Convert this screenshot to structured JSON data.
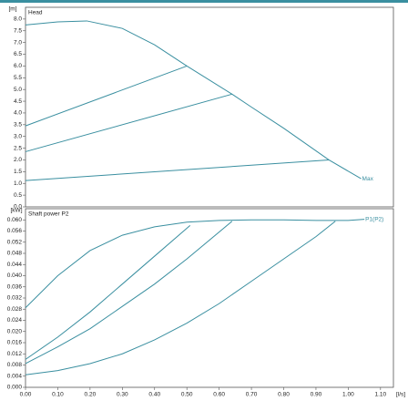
{
  "chart_data": [
    {
      "type": "line",
      "title": "Head",
      "y_label": "[m]",
      "xlim": [
        0,
        1.14
      ],
      "ylim": [
        0,
        8.5
      ],
      "yticks": [
        {
          "value": 0,
          "label": "0.0"
        },
        0.5,
        {
          "value": 1,
          "label": "1.0"
        },
        1.5,
        {
          "value": 2,
          "label": "2.0"
        },
        2.5,
        {
          "value": 3,
          "label": "3.0"
        },
        3.5,
        {
          "value": 4,
          "label": "4.0"
        },
        4.5,
        {
          "value": 5,
          "label": "5.0"
        },
        5.5,
        {
          "value": 6,
          "label": "6.0"
        },
        6.5,
        {
          "value": 7,
          "label": "7.0"
        },
        7.5,
        {
          "value": 8,
          "label": "8.0"
        }
      ],
      "series": [
        {
          "name": "Max",
          "color": "#3a8fa0",
          "x": [
            0,
            0.1,
            0.19,
            0.3,
            0.4,
            0.5,
            0.64,
            0.7,
            0.8,
            0.94,
            1.04
          ],
          "values": [
            7.75,
            7.88,
            7.92,
            7.6,
            6.9,
            6.0,
            4.8,
            4.25,
            3.35,
            2.0,
            1.2
          ]
        },
        {
          "color": "#3a8fa0",
          "x": [
            0,
            0.5
          ],
          "values": [
            3.45,
            6.0
          ]
        },
        {
          "color": "#3a8fa0",
          "x": [
            0,
            0.64
          ],
          "values": [
            2.35,
            4.8
          ]
        },
        {
          "color": "#3a8fa0",
          "x": [
            0,
            0.94
          ],
          "values": [
            1.12,
            2.0
          ]
        }
      ]
    },
    {
      "type": "line",
      "title": "Shaft power P2",
      "y_label": "[kW]",
      "x_label": "[l/s]",
      "xlim": [
        0,
        1.14
      ],
      "ylim": [
        0,
        0.064
      ],
      "xticks": [
        {
          "value": 0,
          "label": "0.00"
        },
        {
          "value": 0.1,
          "label": "0.10"
        },
        {
          "value": 0.2,
          "label": "0.20"
        },
        {
          "value": 0.3,
          "label": "0.30"
        },
        {
          "value": 0.4,
          "label": "0.40"
        },
        {
          "value": 0.5,
          "label": "0.50"
        },
        {
          "value": 0.6,
          "label": "0.60"
        },
        {
          "value": 0.7,
          "label": "0.70"
        },
        {
          "value": 0.8,
          "label": "0.80"
        },
        {
          "value": 0.9,
          "label": "0.90"
        },
        {
          "value": 1,
          "label": "1.00"
        },
        {
          "value": 1.1,
          "label": "1.10"
        }
      ],
      "yticks": [
        {
          "value": 0,
          "label": "0.000"
        },
        0.004,
        0.008,
        0.012,
        0.016,
        {
          "value": 0.02,
          "label": "0.020"
        },
        0.024,
        0.028,
        0.032,
        0.036,
        {
          "value": 0.04,
          "label": "0.040"
        },
        0.044,
        0.048,
        0.052,
        0.056,
        {
          "value": 0.06,
          "label": "0.060"
        }
      ],
      "series": [
        {
          "name": "P1(P2)",
          "color": "#3a8fa0",
          "x": [
            0,
            0.1,
            0.2,
            0.3,
            0.4,
            0.5,
            0.6,
            0.7,
            0.8,
            0.9,
            1.0,
            1.05
          ],
          "values": [
            0.0285,
            0.04,
            0.049,
            0.0545,
            0.0575,
            0.0592,
            0.0598,
            0.06,
            0.06,
            0.0598,
            0.0598,
            0.0602
          ]
        },
        {
          "color": "#3a8fa0",
          "x": [
            0,
            0.1,
            0.2,
            0.3,
            0.4,
            0.51
          ],
          "values": [
            0.01,
            0.018,
            0.027,
            0.037,
            0.047,
            0.058
          ]
        },
        {
          "color": "#3a8fa0",
          "x": [
            0,
            0.1,
            0.2,
            0.3,
            0.4,
            0.5,
            0.64
          ],
          "values": [
            0.0085,
            0.0145,
            0.021,
            0.029,
            0.037,
            0.046,
            0.0595
          ]
        },
        {
          "color": "#3a8fa0",
          "x": [
            0,
            0.1,
            0.2,
            0.3,
            0.4,
            0.5,
            0.6,
            0.7,
            0.8,
            0.9,
            0.96
          ],
          "values": [
            0.0045,
            0.006,
            0.0085,
            0.012,
            0.017,
            0.023,
            0.03,
            0.038,
            0.046,
            0.054,
            0.0595
          ]
        }
      ]
    }
  ]
}
